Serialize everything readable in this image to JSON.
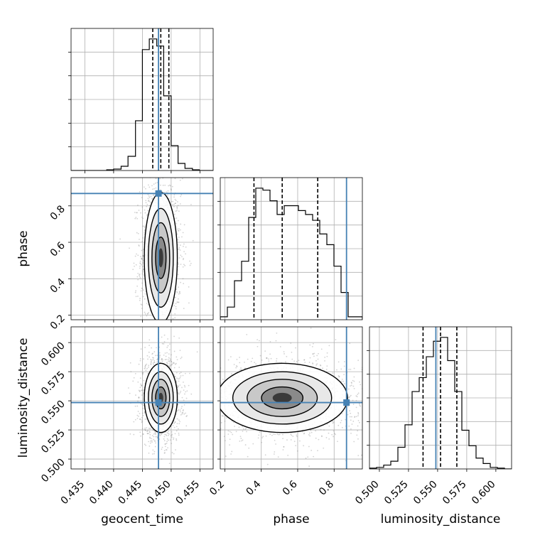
{
  "chart_data": {
    "type": "corner",
    "parameters": [
      "geocent_time",
      "phase",
      "luminosity_distance"
    ],
    "axis_labels": {
      "geocent_time": "geocent_time",
      "phase": "phase",
      "luminosity_distance": "luminosity_distance"
    },
    "ticks": {
      "geocent_time": {
        "values": [
          0.435,
          0.44,
          0.445,
          0.45,
          0.455
        ],
        "labels": [
          "0.435",
          "0.440",
          "0.445",
          "0.450",
          "0.455"
        ]
      },
      "phase": {
        "values": [
          0.2,
          0.4,
          0.6,
          0.8
        ],
        "labels": [
          "0.2",
          "0.4",
          "0.6",
          "0.8"
        ]
      },
      "luminosity_distance": {
        "values": [
          0.5,
          0.525,
          0.55,
          0.575,
          0.6
        ],
        "labels": [
          "0.500",
          "0.525",
          "0.550",
          "0.575",
          "0.600"
        ]
      }
    },
    "ranges": {
      "geocent_time": [
        0.4326,
        0.4573
      ],
      "phase": [
        0.175,
        0.955
      ],
      "luminosity_distance": [
        0.4915,
        0.6135
      ]
    },
    "truths": {
      "geocent_time": 0.4478,
      "phase": 0.868,
      "luminosity_distance": 0.5485
    },
    "quantiles": {
      "geocent_time": [
        0.4468,
        0.4482,
        0.4496
      ],
      "phase": [
        0.36,
        0.515,
        0.71
      ],
      "luminosity_distance": [
        0.5375,
        0.5525,
        0.5665
      ]
    },
    "histograms_1d": {
      "geocent_time": {
        "bins": [
          0.4326,
          0.4338,
          0.4351,
          0.4363,
          0.4376,
          0.4388,
          0.44,
          0.4413,
          0.4425,
          0.4438,
          0.445,
          0.4462,
          0.4475,
          0.4487,
          0.45,
          0.4512,
          0.4524,
          0.4537,
          0.4549,
          0.4561,
          0.4573
        ],
        "counts": [
          0,
          0,
          0,
          0,
          0,
          1,
          2,
          6,
          20,
          70,
          170,
          185,
          175,
          105,
          35,
          10,
          3,
          1,
          0,
          0
        ]
      },
      "phase": {
        "bins": [
          0.175,
          0.214,
          0.253,
          0.292,
          0.331,
          0.37,
          0.409,
          0.448,
          0.487,
          0.526,
          0.565,
          0.604,
          0.643,
          0.682,
          0.721,
          0.76,
          0.799,
          0.838,
          0.877,
          0.916,
          0.955
        ],
        "counts": [
          3,
          13,
          40,
          60,
          105,
          135,
          133,
          122,
          108,
          117,
          117,
          112,
          108,
          102,
          88,
          77,
          55,
          28,
          3,
          3
        ]
      },
      "luminosity_distance": {
        "bins": [
          0.4915,
          0.4976,
          0.5037,
          0.5098,
          0.5159,
          0.522,
          0.5281,
          0.5342,
          0.5403,
          0.5464,
          0.5525,
          0.5586,
          0.5647,
          0.5708,
          0.5769,
          0.583,
          0.5891,
          0.5952,
          0.6013,
          0.6074,
          0.6135
        ],
        "counts": [
          1,
          2,
          5,
          10,
          28,
          57,
          100,
          118,
          145,
          165,
          170,
          140,
          100,
          50,
          30,
          14,
          7,
          2,
          1,
          0
        ]
      }
    },
    "grid": true,
    "colors": {
      "truth": "#4682b4",
      "contour": "#000000",
      "hist": "#000000",
      "scatter": "#808080"
    }
  }
}
